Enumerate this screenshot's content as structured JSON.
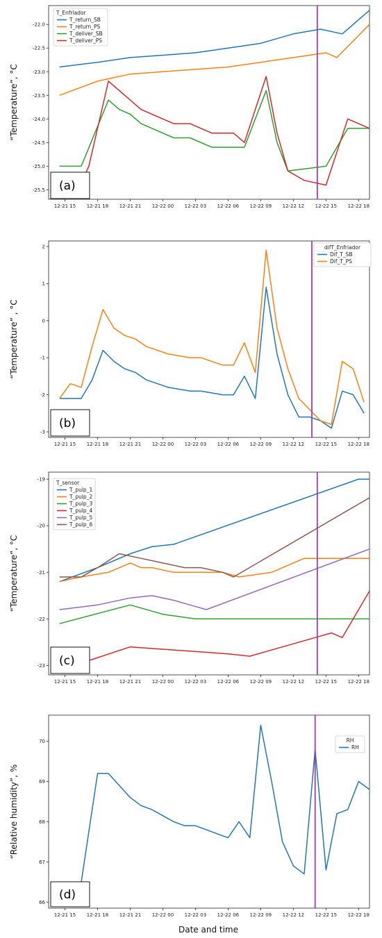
{
  "x_axis_label": "Date and time",
  "chart_data": [
    {
      "type": "line",
      "panel_label": "(a)",
      "ylabel": "“Temperature”, °C",
      "legend_title": "T_Enfriador",
      "legend_position": "top-left",
      "xlim": [
        13.5,
        43.0
      ],
      "ylim": [
        -25.7,
        -21.6
      ],
      "x_ticks": [
        15,
        18,
        21,
        24,
        27,
        30,
        33,
        36,
        39,
        42
      ],
      "x_tick_labels": [
        "12-21 15",
        "12-21 18",
        "12-21 21",
        "12-22 00",
        "12-22 03",
        "12-22 06",
        "12-22 09",
        "12-22 12",
        "12-22 15",
        "12-22 18"
      ],
      "y_ticks": [
        -25.5,
        -25.0,
        -24.5,
        -24.0,
        -23.5,
        -23.0,
        -22.5,
        -22.0
      ],
      "y_tick_labels": [
        "-25.5",
        "-25.0",
        "-24.5",
        "-24.0",
        "-23.5",
        "-23.0",
        "-22.5",
        "-22.0"
      ],
      "vline_x": 38.2,
      "vline_color": "#a03cb0",
      "series": [
        {
          "name": "T_return_SB",
          "color": "#1f77b4",
          "x": [
            14.5,
            18,
            21,
            24,
            27,
            30,
            33,
            36,
            38.5,
            40.5,
            43
          ],
          "y": [
            -22.9,
            -22.8,
            -22.7,
            -22.65,
            -22.6,
            -22.5,
            -22.4,
            -22.2,
            -22.1,
            -22.2,
            -21.7
          ]
        },
        {
          "name": "T_return_PS",
          "color": "#ff7f0e",
          "x": [
            14.5,
            18,
            21,
            24,
            27,
            30,
            33,
            36,
            39,
            40,
            43
          ],
          "y": [
            -23.5,
            -23.2,
            -23.05,
            -23.0,
            -22.95,
            -22.9,
            -22.8,
            -22.7,
            -22.6,
            -22.7,
            -22.0
          ]
        },
        {
          "name": "T_deliver_SB",
          "color": "#2ca02c",
          "x": [
            14.5,
            16.5,
            19,
            20,
            21,
            22,
            24,
            25,
            26.5,
            28.5,
            30.5,
            31.5,
            33.5,
            34.5,
            35.5,
            39,
            41,
            43
          ],
          "y": [
            -25.0,
            -25.0,
            -23.6,
            -23.8,
            -23.9,
            -24.1,
            -24.3,
            -24.4,
            -24.4,
            -24.6,
            -24.6,
            -24.6,
            -23.4,
            -24.5,
            -25.1,
            -25.0,
            -24.2,
            -24.2
          ]
        },
        {
          "name": "T_deliver_PS",
          "color": "#d62728",
          "x": [
            16.0,
            17.2,
            19,
            21,
            22,
            24,
            25,
            26.5,
            28.5,
            30.5,
            31.5,
            33.5,
            34.5,
            35.5,
            37,
            39,
            41,
            43
          ],
          "y": [
            -25.6,
            -25.0,
            -23.2,
            -23.6,
            -23.8,
            -24.0,
            -24.1,
            -24.1,
            -24.3,
            -24.3,
            -24.5,
            -23.1,
            -24.3,
            -25.1,
            -25.3,
            -25.4,
            -24.0,
            -24.2
          ]
        }
      ]
    },
    {
      "type": "line",
      "panel_label": "(b)",
      "ylabel": "“Temperature” , °C",
      "legend_title": "difT_Enfriador",
      "legend_position": "top-right",
      "xlim": [
        13.5,
        43.0
      ],
      "ylim": [
        -3.15,
        2.15
      ],
      "x_ticks": [
        15,
        18,
        21,
        24,
        27,
        30,
        33,
        36,
        39,
        42
      ],
      "x_tick_labels": [
        "12-21 15",
        "12-21 18",
        "12-21 21",
        "12-22 00",
        "12-22 03",
        "12-22 06",
        "12-22 09",
        "12-22 12",
        "12-22 15",
        "12-22 18"
      ],
      "y_ticks": [
        -3,
        -2,
        -1,
        0,
        1,
        2
      ],
      "y_tick_labels": [
        "-3",
        "-2",
        "-1",
        "0",
        "1",
        "2"
      ],
      "vline_x": 37.7,
      "vline_color": "#a03cb0",
      "series": [
        {
          "name": "Dif_T_SB",
          "color": "#1f77b4",
          "x": [
            14.5,
            15.5,
            16.5,
            17.5,
            18.5,
            19.5,
            20.5,
            21.5,
            22.5,
            24.5,
            26.5,
            27.5,
            29.5,
            30.5,
            31.5,
            32.5,
            33.5,
            34.5,
            35.5,
            36.5,
            37.5,
            38.5,
            39.5,
            40.5,
            41.5,
            42.5
          ],
          "y": [
            -2.1,
            -2.1,
            -2.1,
            -1.6,
            -0.8,
            -1.1,
            -1.3,
            -1.4,
            -1.6,
            -1.8,
            -1.9,
            -1.9,
            -2.0,
            -2.0,
            -1.5,
            -2.1,
            0.9,
            -0.9,
            -2.0,
            -2.6,
            -2.6,
            -2.7,
            -2.9,
            -1.9,
            -2.0,
            -2.5
          ]
        },
        {
          "name": "Dif_T_PS",
          "color": "#ff7f0e",
          "x": [
            14.5,
            15.5,
            16.5,
            17.5,
            18.5,
            19.5,
            20.5,
            21.5,
            22.5,
            24.5,
            26.5,
            27.5,
            29.5,
            30.5,
            31.5,
            32.5,
            33.5,
            34.5,
            35.5,
            36.5,
            37.5,
            38.5,
            39.5,
            40.5,
            41.5,
            42.5
          ],
          "y": [
            -2.1,
            -1.7,
            -1.8,
            -0.7,
            0.3,
            -0.2,
            -0.4,
            -0.5,
            -0.7,
            -0.9,
            -1.0,
            -1.0,
            -1.2,
            -1.2,
            -0.6,
            -1.4,
            1.9,
            -0.2,
            -1.3,
            -2.1,
            -2.4,
            -2.7,
            -2.8,
            -1.1,
            -1.3,
            -2.2
          ]
        }
      ]
    },
    {
      "type": "line",
      "panel_label": "(c)",
      "ylabel": "“Temperature”, °C",
      "legend_title": "T_sensor",
      "legend_position": "top-left",
      "xlim": [
        13.5,
        43.0
      ],
      "ylim": [
        -23.2,
        -18.85
      ],
      "x_ticks": [
        15,
        18,
        21,
        24,
        27,
        30,
        33,
        36,
        39,
        42
      ],
      "x_tick_labels": [
        "12-21 15",
        "12-21 18",
        "12-21 21",
        "12-22 00",
        "12-22 03",
        "12-22 06",
        "12-22 09",
        "12-22 12",
        "12-22 15",
        "12-22 18"
      ],
      "y_ticks": [
        -23,
        -22,
        -21,
        -20,
        -19
      ],
      "y_tick_labels": [
        "-23",
        "-22",
        "-21",
        "-20",
        "-19"
      ],
      "vline_x": 38.2,
      "vline_color": "#a03cb0",
      "series": [
        {
          "name": "T_pulp_1",
          "color": "#1f77b4",
          "x": [
            14.5,
            18,
            21,
            23,
            25,
            42,
            43
          ],
          "y": [
            -21.2,
            -20.9,
            -20.6,
            -20.45,
            -20.4,
            -19.0,
            -19.0
          ]
        },
        {
          "name": "T_pulp_2",
          "color": "#ff7f0e",
          "x": [
            14.5,
            16.5,
            19,
            21,
            22,
            23,
            25,
            27.5,
            29.5,
            31,
            34,
            37,
            40,
            43
          ],
          "y": [
            -21.2,
            -21.1,
            -21.0,
            -20.8,
            -20.9,
            -20.9,
            -21.0,
            -21.0,
            -21.0,
            -21.1,
            -21.0,
            -20.7,
            -20.7,
            -20.7
          ]
        },
        {
          "name": "T_pulp_3",
          "color": "#2ca02c",
          "x": [
            14.5,
            21,
            24,
            27,
            30,
            33,
            36,
            39,
            43
          ],
          "y": [
            -22.1,
            -21.7,
            -21.9,
            -22.0,
            -22.0,
            -22.0,
            -22.0,
            -22.0,
            -22.0
          ]
        },
        {
          "name": "T_pulp_4",
          "color": "#d62728",
          "x": [
            14.5,
            21,
            24,
            27,
            30,
            32,
            35,
            38,
            39.5,
            40.5,
            43
          ],
          "y": [
            -23.1,
            -22.6,
            -22.65,
            -22.7,
            -22.75,
            -22.8,
            -22.6,
            -22.4,
            -22.3,
            -22.4,
            -21.4
          ]
        },
        {
          "name": "T_pulp_5",
          "color": "#9467bd",
          "x": [
            14.5,
            18,
            21,
            23,
            25,
            26.5,
            28,
            43
          ],
          "y": [
            -21.8,
            -21.7,
            -21.55,
            -21.5,
            -21.6,
            -21.7,
            -21.8,
            -20.5
          ]
        },
        {
          "name": "T_pulp_6",
          "color": "#8c564b",
          "x": [
            14.5,
            16.5,
            18,
            20,
            22,
            24,
            26,
            27.5,
            29.5,
            30.5,
            43
          ],
          "y": [
            -21.1,
            -21.1,
            -20.9,
            -20.6,
            -20.7,
            -20.8,
            -20.9,
            -20.9,
            -21.0,
            -21.1,
            -19.4
          ]
        }
      ]
    },
    {
      "type": "line",
      "panel_label": "(d)",
      "ylabel": "“Relative humidity”, %",
      "legend_title": "RH",
      "legend_position": "top-right",
      "xlim": [
        13.5,
        43.0
      ],
      "ylim": [
        65.85,
        70.65
      ],
      "x_ticks": [
        15,
        18,
        21,
        24,
        27,
        30,
        33,
        36,
        39,
        42
      ],
      "x_tick_labels": [
        "12-21 15",
        "12-21 18",
        "12-21 21",
        "12-22 00",
        "12-22 03",
        "12-22 06",
        "12-22 09",
        "12-22 12",
        "12-22 15",
        "12-22 18"
      ],
      "y_ticks": [
        66,
        67,
        68,
        69,
        70
      ],
      "y_tick_labels": [
        "66",
        "67",
        "68",
        "69",
        "70"
      ],
      "vline_x": 38.0,
      "vline_color": "#a03cb0",
      "series": [
        {
          "name": "RH",
          "color": "#1f77b4",
          "x": [
            16.5,
            18,
            19,
            20,
            21,
            22,
            23,
            24,
            25,
            26,
            27,
            28,
            29,
            30,
            31,
            32,
            33,
            34,
            35,
            36,
            37,
            38,
            39,
            40,
            41,
            42,
            43
          ],
          "y": [
            66.5,
            69.2,
            69.2,
            68.9,
            68.6,
            68.4,
            68.3,
            68.15,
            68.0,
            67.9,
            67.9,
            67.8,
            67.7,
            67.6,
            68.0,
            67.6,
            70.4,
            69.0,
            67.5,
            66.9,
            66.7,
            69.8,
            66.8,
            68.2,
            68.3,
            69.0,
            68.8
          ]
        }
      ]
    }
  ]
}
